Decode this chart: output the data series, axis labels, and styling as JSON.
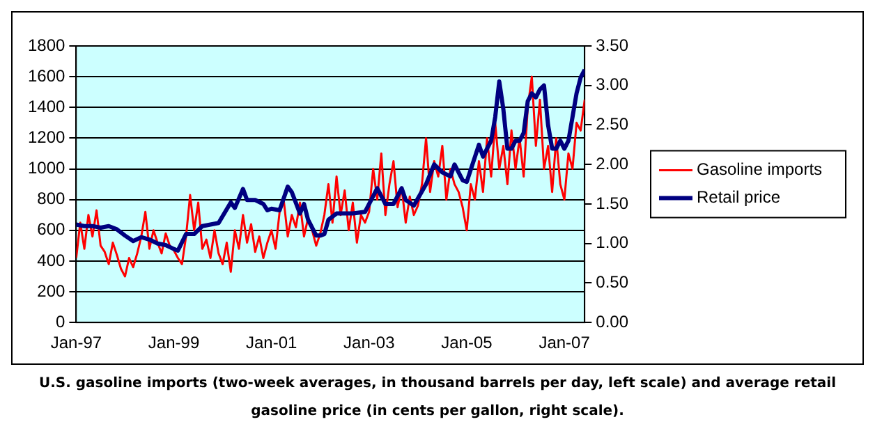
{
  "chart_data": {
    "type": "line",
    "annotations": [
      "U.S. gasoline imports (two-week averages, in thousand barrels per day, left scale) and average retail gasoline price (in cents per gallon, right scale)."
    ],
    "xlim": [
      "1997-01",
      "2007-06"
    ],
    "xticks": [
      {
        "value": "1997-01",
        "label": "Jan-97"
      },
      {
        "value": "1999-01",
        "label": "Jan-99"
      },
      {
        "value": "2001-01",
        "label": "Jan-01"
      },
      {
        "value": "2003-01",
        "label": "Jan-03"
      },
      {
        "value": "2005-01",
        "label": "Jan-05"
      },
      {
        "value": "2007-01",
        "label": "Jan-07"
      }
    ],
    "ylim": [
      0,
      1800
    ],
    "yticks": [
      0,
      200,
      400,
      600,
      800,
      1000,
      1200,
      1400,
      1600,
      1800
    ],
    "y2lim": [
      0,
      3.5
    ],
    "y2ticks": [
      {
        "value": 0,
        "label": "0.00"
      },
      {
        "value": 0.5,
        "label": "0.50"
      },
      {
        "value": 1,
        "label": "1.00"
      },
      {
        "value": 1.5,
        "label": "1.50"
      },
      {
        "value": 2,
        "label": "2.00"
      },
      {
        "value": 2.5,
        "label": "2.50"
      },
      {
        "value": 3,
        "label": "3.00"
      },
      {
        "value": 3.5,
        "label": "3.50"
      }
    ],
    "grid": "y",
    "legend": "right",
    "marker": "none",
    "line_style": "solid",
    "series": [
      {
        "name": "Gasoline imports",
        "color": "#ff0000",
        "x": [
          "1997-01",
          "1997-02",
          "1997-03",
          "1997-04",
          "1997-05",
          "1997-06",
          "1997-07",
          "1997-08",
          "1997-09",
          "1997-10",
          "1997-11",
          "1997-12",
          "1998-01",
          "1998-02",
          "1998-03",
          "1998-04",
          "1998-05",
          "1998-06",
          "1998-07",
          "1998-08",
          "1998-09",
          "1998-10",
          "1998-11",
          "1998-12",
          "1999-01",
          "1999-02",
          "1999-03",
          "1999-04",
          "1999-05",
          "1999-06",
          "1999-07",
          "1999-08",
          "1999-09",
          "1999-10",
          "1999-11",
          "1999-12",
          "2000-01",
          "2000-02",
          "2000-03",
          "2000-04",
          "2000-05",
          "2000-06",
          "2000-07",
          "2000-08",
          "2000-09",
          "2000-10",
          "2000-11",
          "2000-12",
          "2001-01",
          "2001-02",
          "2001-03",
          "2001-04",
          "2001-05",
          "2001-06",
          "2001-07",
          "2001-08",
          "2001-09",
          "2001-10",
          "2001-11",
          "2001-12",
          "2002-01",
          "2002-02",
          "2002-03",
          "2002-04",
          "2002-05",
          "2002-06",
          "2002-07",
          "2002-08",
          "2002-09",
          "2002-10",
          "2002-11",
          "2002-12",
          "2003-01",
          "2003-02",
          "2003-03",
          "2003-04",
          "2003-05",
          "2003-06",
          "2003-07",
          "2003-08",
          "2003-09",
          "2003-10",
          "2003-11",
          "2003-12",
          "2004-01",
          "2004-02",
          "2004-03",
          "2004-04",
          "2004-05",
          "2004-06",
          "2004-07",
          "2004-08",
          "2004-09",
          "2004-10",
          "2004-11",
          "2004-12",
          "2005-01",
          "2005-02",
          "2005-03",
          "2005-04",
          "2005-05",
          "2005-06",
          "2005-07",
          "2005-08",
          "2005-09",
          "2005-10",
          "2005-11",
          "2005-12",
          "2006-01",
          "2006-02",
          "2006-03",
          "2006-04",
          "2006-05",
          "2006-06",
          "2006-07",
          "2006-08",
          "2006-09",
          "2006-10",
          "2006-11",
          "2006-12",
          "2007-01",
          "2007-02",
          "2007-03",
          "2007-04",
          "2007-05",
          "2007-06"
        ],
        "values": [
          420,
          650,
          480,
          700,
          560,
          730,
          500,
          460,
          380,
          520,
          440,
          350,
          300,
          420,
          360,
          450,
          560,
          720,
          480,
          600,
          520,
          450,
          580,
          500,
          470,
          420,
          380,
          560,
          830,
          600,
          780,
          480,
          540,
          420,
          600,
          450,
          380,
          520,
          330,
          600,
          480,
          700,
          520,
          640,
          460,
          560,
          420,
          520,
          600,
          480,
          720,
          800,
          560,
          700,
          620,
          780,
          560,
          680,
          600,
          500,
          580,
          700,
          900,
          650,
          950,
          700,
          860,
          600,
          780,
          520,
          700,
          650,
          720,
          1000,
          800,
          1100,
          700,
          900,
          1050,
          750,
          880,
          650,
          820,
          700,
          760,
          900,
          1200,
          850,
          1050,
          950,
          1150,
          800,
          1000,
          900,
          850,
          750,
          600,
          900,
          800,
          1050,
          850,
          1200,
          950,
          1300,
          1000,
          1150,
          900,
          1250,
          1000,
          1200,
          950,
          1400,
          1600,
          1150,
          1450,
          1000,
          1150,
          850,
          1200,
          900,
          800,
          1100,
          1000,
          1300,
          1250,
          1450
        ]
      },
      {
        "name": "Retail price",
        "color": "#000080",
        "axis": "y2",
        "x": [
          "1997-01",
          "1997-03",
          "1997-05",
          "1997-07",
          "1997-09",
          "1997-11",
          "1998-01",
          "1998-03",
          "1998-05",
          "1998-07",
          "1998-09",
          "1998-11",
          "1999-01",
          "1999-02",
          "1999-04",
          "1999-06",
          "1999-08",
          "1999-10",
          "1999-12",
          "2000-03",
          "2000-04",
          "2000-06",
          "2000-07",
          "2000-09",
          "2000-11",
          "2000-12",
          "2001-01",
          "2001-03",
          "2001-05",
          "2001-06",
          "2001-08",
          "2001-09",
          "2001-10",
          "2001-12",
          "2002-01",
          "2002-02",
          "2002-03",
          "2002-05",
          "2002-07",
          "2002-09",
          "2002-12",
          "2003-03",
          "2003-05",
          "2003-07",
          "2003-08",
          "2003-09",
          "2003-10",
          "2003-12",
          "2004-03",
          "2004-05",
          "2004-07",
          "2004-09",
          "2004-10",
          "2004-12",
          "2005-01",
          "2005-04",
          "2005-05",
          "2005-07",
          "2005-08",
          "2005-09",
          "2005-10",
          "2005-11",
          "2005-12",
          "2006-01",
          "2006-02",
          "2006-03",
          "2006-04",
          "2006-05",
          "2006-06",
          "2006-07",
          "2006-08",
          "2006-09",
          "2006-10",
          "2006-11",
          "2006-12",
          "2007-01",
          "2007-02",
          "2007-03",
          "2007-04",
          "2007-05",
          "2007-06"
        ],
        "values": [
          1.24,
          1.22,
          1.22,
          1.2,
          1.22,
          1.18,
          1.1,
          1.03,
          1.08,
          1.05,
          1.0,
          0.98,
          0.93,
          0.91,
          1.12,
          1.12,
          1.22,
          1.24,
          1.26,
          1.52,
          1.45,
          1.69,
          1.55,
          1.55,
          1.5,
          1.42,
          1.44,
          1.42,
          1.72,
          1.65,
          1.38,
          1.5,
          1.3,
          1.1,
          1.1,
          1.12,
          1.3,
          1.38,
          1.38,
          1.38,
          1.4,
          1.7,
          1.5,
          1.5,
          1.6,
          1.7,
          1.55,
          1.48,
          1.75,
          2.0,
          1.9,
          1.85,
          2.0,
          1.8,
          1.78,
          2.25,
          2.1,
          2.3,
          2.6,
          3.05,
          2.7,
          2.2,
          2.2,
          2.3,
          2.3,
          2.4,
          2.8,
          2.9,
          2.85,
          2.95,
          3.0,
          2.5,
          2.2,
          2.2,
          2.3,
          2.2,
          2.3,
          2.6,
          2.9,
          3.1,
          3.2
        ]
      }
    ]
  }
}
